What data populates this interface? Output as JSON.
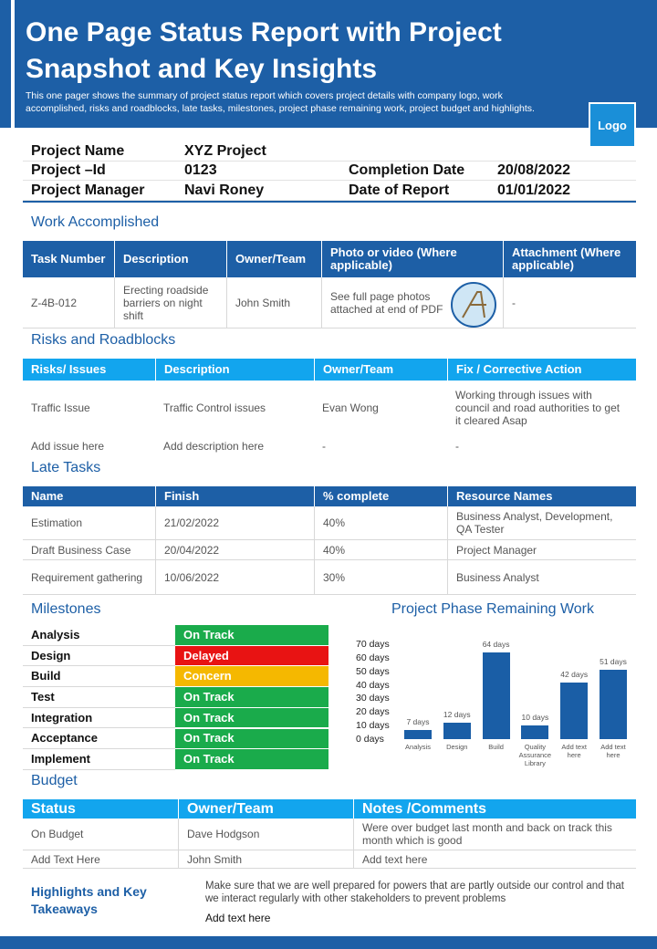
{
  "header": {
    "title": "One Page Status Report with Project Snapshot and Key Insights",
    "subtitle": "This one pager shows the summary of project status report which covers project details with company logo, work accomplished, risks and roadblocks, late tasks, milestones, project phase remaining work, project budget and highlights.",
    "logo": "Logo"
  },
  "project_info": {
    "rows": [
      [
        "Project Name",
        "XYZ Project"
      ],
      [
        "Project –Id",
        "0123",
        "Completion Date",
        "20/08/2022"
      ],
      [
        "Project Manager",
        "Navi Roney",
        "Date of Report",
        "01/01/2022"
      ]
    ]
  },
  "work_accomplished": {
    "heading": "Work Accomplished",
    "columns": [
      "Task Number",
      "Description",
      "Owner/Team",
      "Photo or video (Where applicable)",
      "Attachment (Where applicable)"
    ],
    "rows": [
      [
        "Z-4B-012",
        "Erecting roadside barriers on night shift",
        "John Smith",
        "See full page photos attached at end of PDF",
        "-"
      ]
    ]
  },
  "risks": {
    "heading": "Risks and Roadblocks",
    "columns": [
      "Risks/ Issues",
      "Description",
      "Owner/Team",
      "Fix / Corrective Action"
    ],
    "rows": [
      [
        "Traffic  Issue",
        "Traffic  Control issues",
        "Evan Wong",
        "Working through  issues with council and road authorities to get it cleared Asap"
      ],
      [
        "Add issue here",
        "Add description here",
        "-",
        "-"
      ]
    ]
  },
  "late_tasks": {
    "heading": "Late Tasks",
    "columns": [
      "Name",
      "Finish",
      "% complete",
      "Resource Names"
    ],
    "rows": [
      [
        "Estimation",
        "21/02/2022",
        "40%",
        "Business Analyst, Development,  QA Tester"
      ],
      [
        "Draft Business Case",
        "20/04/2022",
        "40%",
        "Project Manager"
      ],
      [
        "Requirement gathering",
        "10/06/2022",
        "30%",
        "Business Analyst"
      ]
    ]
  },
  "milestones": {
    "heading": "Milestones",
    "rows": [
      {
        "name": "Analysis",
        "status": "On Track",
        "color": "#1aab4b"
      },
      {
        "name": "Design",
        "status": "Delayed",
        "color": "#e81313"
      },
      {
        "name": "Build",
        "status": "Concern",
        "color": "#f5b800"
      },
      {
        "name": "Test",
        "status": "On Track",
        "color": "#1aab4b"
      },
      {
        "name": "Integration",
        "status": "On Track",
        "color": "#1aab4b"
      },
      {
        "name": "Acceptance",
        "status": "On Track",
        "color": "#1aab4b"
      },
      {
        "name": "Implement",
        "status": "On Track",
        "color": "#1aab4b"
      }
    ]
  },
  "chart_data": {
    "type": "bar",
    "title": "Project Phase Remaining Work",
    "categories": [
      "Analysis",
      "Design",
      "Build",
      "Quality Assurance Library",
      "Add text here",
      "Add text here"
    ],
    "values": [
      7,
      12,
      64,
      10,
      42,
      51
    ],
    "value_labels": [
      "7 days",
      "12 days",
      "64 days",
      "10 days",
      "42 days",
      "51 days"
    ],
    "color": "#1a5ea6",
    "ylim": [
      0,
      70
    ],
    "yticks": [
      {
        "value": 0,
        "label": "0 days"
      },
      {
        "value": 10,
        "label": "10 days"
      },
      {
        "value": 20,
        "label": "20 days"
      },
      {
        "value": 30,
        "label": "30 days"
      },
      {
        "value": 40,
        "label": "40 days"
      },
      {
        "value": 50,
        "label": "50 days"
      },
      {
        "value": 60,
        "label": "60 days"
      },
      {
        "value": 70,
        "label": "70 days"
      }
    ]
  },
  "budget": {
    "heading": "Budget",
    "columns": [
      "Status",
      "Owner/Team",
      "Notes /Comments"
    ],
    "rows": [
      [
        "On Budget",
        "Dave  Hodgson",
        "Were over  budget last month and back on track this month which is good"
      ],
      [
        "Add Text Here",
        "John Smith",
        "Add text here"
      ]
    ]
  },
  "highlights": {
    "heading": "Highlights and Key Takeaways",
    "text": [
      "Make sure that we are well prepared for powers that are partly outside our control and that we interact regularly with other stakeholders to prevent problems",
      "Add text here"
    ]
  }
}
